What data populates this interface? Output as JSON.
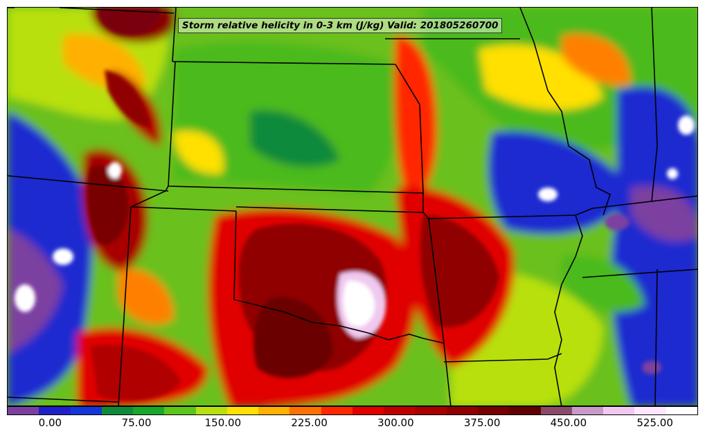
{
  "title": "Storm relative helicity in 0-3 km (J/kg) Valid: 201805260700",
  "colorbar": {
    "segments": [
      "#7b3fa0",
      "#2020c8",
      "#1436d8",
      "#0e8a3a",
      "#18a82a",
      "#5cc41a",
      "#b8e010",
      "#ffe000",
      "#ffb000",
      "#ff7000",
      "#ff2800",
      "#e00000",
      "#c00000",
      "#a80000",
      "#900000",
      "#780000",
      "#600000",
      "#8a4a6a",
      "#c89ac8",
      "#f0c8f0",
      "#ffe8ff",
      "#ffffff"
    ],
    "ticks": [
      {
        "label": "0.00",
        "value": 0
      },
      {
        "label": "75.00",
        "value": 75
      },
      {
        "label": "150.00",
        "value": 150
      },
      {
        "label": "225.00",
        "value": 225
      },
      {
        "label": "300.00",
        "value": 300
      },
      {
        "label": "375.00",
        "value": 375
      },
      {
        "label": "450.00",
        "value": 450
      },
      {
        "label": "525.00",
        "value": 525
      }
    ],
    "min": -37.5,
    "max": 562.5
  },
  "colors": {
    "purple": "#7b3fa0",
    "blue": "#1a2ad0",
    "dark_green": "#0e8a3a",
    "green": "#4cba1c",
    "lime": "#b8e010",
    "yellow": "#ffe000",
    "orange": "#ff8000",
    "red": "#ff1a00",
    "dark_red": "#b00000",
    "maroon": "#6a0000",
    "pink": "#f0c8f0",
    "white": "#ffffff",
    "boundary": "#000000"
  }
}
